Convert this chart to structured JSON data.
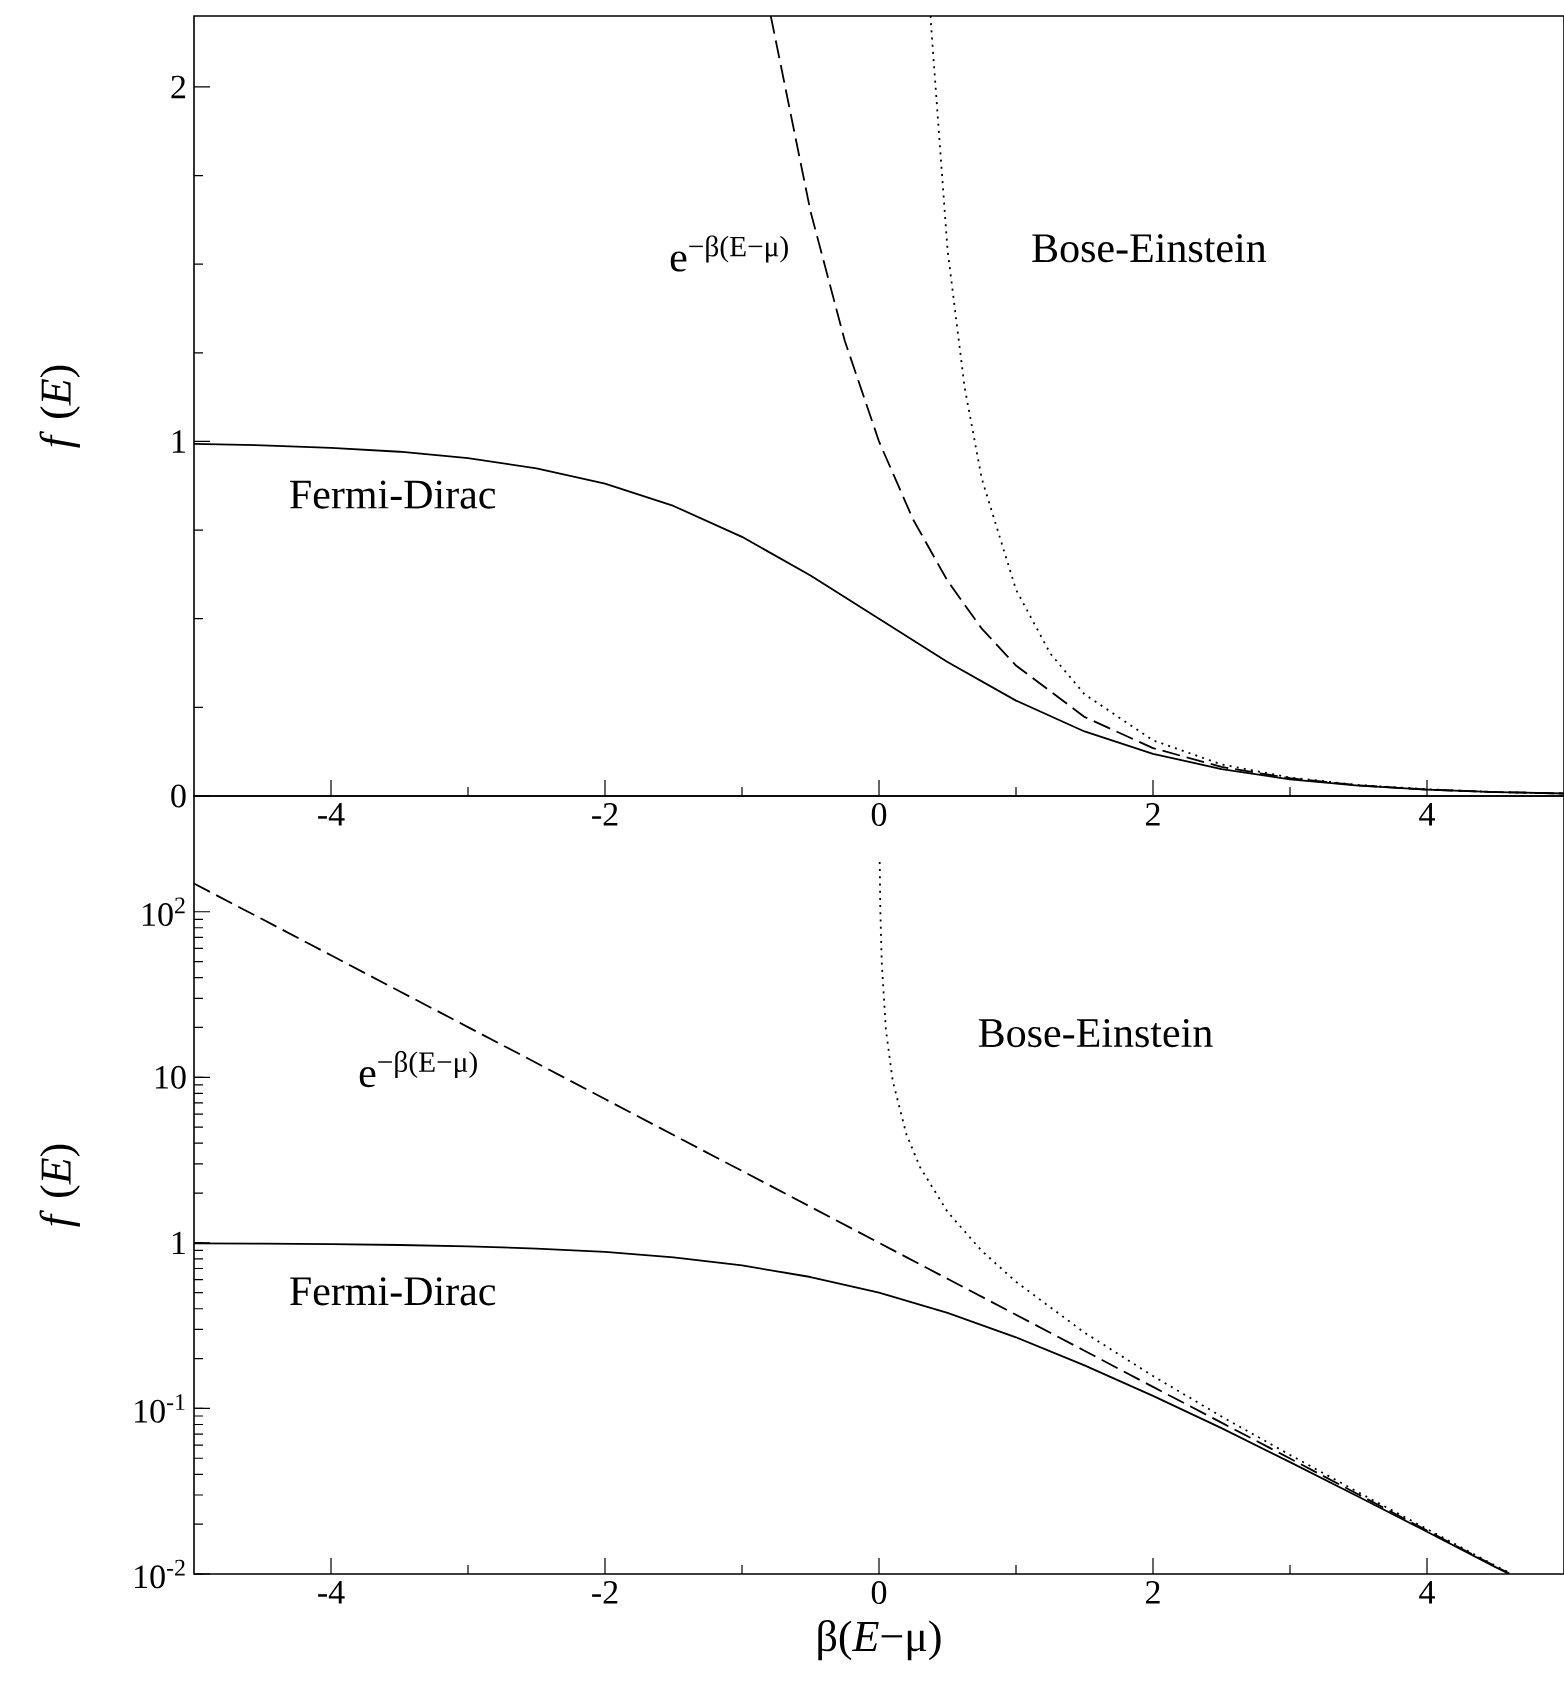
{
  "chart_data": [
    {
      "type": "line",
      "ylabel": "*f* (*E*)",
      "xlim": [
        -5,
        5
      ],
      "ylim": [
        0,
        2.2
      ],
      "xticks": [
        -4,
        -2,
        0,
        2,
        4
      ],
      "yticks": [
        0,
        1,
        2
      ],
      "series": [
        {
          "name": "Fermi-Dirac",
          "color": "#000000",
          "line_style": "solid",
          "x": [
            -5,
            -4.5,
            -4,
            -3.5,
            -3,
            -2.5,
            -2,
            -1.5,
            -1,
            -0.5,
            0,
            0.5,
            1,
            1.5,
            2,
            2.5,
            3,
            3.5,
            4,
            4.5,
            5
          ],
          "values": [
            0.993,
            0.989,
            0.982,
            0.971,
            0.953,
            0.924,
            0.881,
            0.818,
            0.731,
            0.622,
            0.5,
            0.378,
            0.269,
            0.182,
            0.119,
            0.076,
            0.047,
            0.029,
            0.018,
            0.011,
            0.007
          ]
        },
        {
          "name": "e$^{−β(E−μ)}$",
          "color": "#000000",
          "line_style": "dashed",
          "x": [
            -0.79,
            -0.5,
            -0.25,
            0,
            0.25,
            0.5,
            0.75,
            1,
            1.5,
            2,
            2.5,
            3,
            3.5,
            4,
            4.5,
            5
          ],
          "values": [
            2.2,
            1.649,
            1.284,
            1,
            0.779,
            0.607,
            0.472,
            0.368,
            0.223,
            0.135,
            0.082,
            0.05,
            0.03,
            0.018,
            0.011,
            0.007
          ]
        },
        {
          "name": "Bose-Einstein",
          "color": "#000000",
          "line_style": "dotted",
          "x": [
            0.375,
            0.5,
            0.625,
            0.75,
            1,
            1.25,
            1.5,
            2,
            2.5,
            3,
            3.5,
            4,
            4.5,
            5
          ],
          "values": [
            2.2,
            1.542,
            1.152,
            0.895,
            0.582,
            0.402,
            0.287,
            0.157,
            0.089,
            0.052,
            0.031,
            0.019,
            0.011,
            0.007
          ]
        }
      ]
    },
    {
      "type": "line",
      "xlabel": "β(*E*−μ)",
      "ylabel": "*f* (*E*)",
      "log": "y",
      "xlim": [
        -5,
        5
      ],
      "ylim": [
        0.01,
        500
      ],
      "xticks": [
        -4,
        -2,
        0,
        2,
        4
      ],
      "yticks": [
        {
          "value": 0.01,
          "label": "10$^{-2}$"
        },
        {
          "value": 0.1,
          "label": "10$^{-1}$"
        },
        1,
        10,
        {
          "value": 100,
          "label": "10$^{2}$"
        }
      ],
      "series": [
        {
          "name": "Fermi-Dirac",
          "color": "#000000",
          "line_style": "solid",
          "x": [
            -5,
            -4.5,
            -4,
            -3.5,
            -3,
            -2.5,
            -2,
            -1.5,
            -1,
            -0.5,
            0,
            0.5,
            1,
            1.5,
            2,
            2.5,
            3,
            3.5,
            4,
            4.5,
            4.6
          ],
          "values": [
            0.993,
            0.989,
            0.982,
            0.971,
            0.953,
            0.924,
            0.881,
            0.818,
            0.731,
            0.622,
            0.5,
            0.378,
            0.269,
            0.182,
            0.119,
            0.076,
            0.0474,
            0.0293,
            0.018,
            0.011,
            0.01
          ]
        },
        {
          "name": "e$^{−β(E−μ)}$",
          "color": "#000000",
          "line_style": "dashed",
          "x": [
            -5,
            -4.5,
            -4,
            -3.5,
            -3,
            -2.5,
            -2,
            -1.5,
            -1,
            -0.5,
            0,
            0.5,
            1,
            1.5,
            2,
            2.5,
            3,
            3.5,
            4,
            4.5,
            4.6
          ],
          "values": [
            148,
            90,
            54.6,
            33.1,
            20.1,
            12.2,
            7.39,
            4.48,
            2.72,
            1.65,
            1,
            0.607,
            0.368,
            0.223,
            0.135,
            0.0821,
            0.0498,
            0.0302,
            0.0183,
            0.0111,
            0.0101
          ]
        },
        {
          "name": "Bose-Einstein",
          "color": "#000000",
          "line_style": "dotted",
          "x": [
            0.005,
            0.01,
            0.02,
            0.05,
            0.1,
            0.2,
            0.3,
            0.5,
            0.75,
            1,
            1.5,
            2,
            2.5,
            3,
            3.5,
            4,
            4.5,
            4.6
          ],
          "values": [
            200,
            99.5,
            49.5,
            19.5,
            9.51,
            4.52,
            2.86,
            1.54,
            0.895,
            0.582,
            0.287,
            0.157,
            0.0894,
            0.0524,
            0.0311,
            0.0187,
            0.0112,
            0.0102
          ]
        }
      ]
    }
  ]
}
